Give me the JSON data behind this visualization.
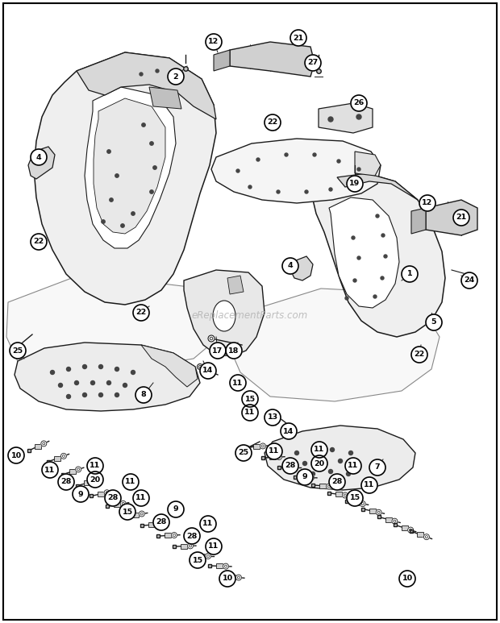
{
  "background_color": "#ffffff",
  "border_color": "#000000",
  "watermark": "eReplacementParts.com",
  "watermark_color": "#b0b0b0",
  "figsize": [
    6.2,
    7.73
  ],
  "dpi": 100,
  "labels": [
    [
      "2",
      218,
      95
    ],
    [
      "12",
      265,
      52
    ],
    [
      "21",
      370,
      47
    ],
    [
      "4",
      48,
      195
    ],
    [
      "22",
      48,
      300
    ],
    [
      "25",
      22,
      435
    ],
    [
      "22",
      175,
      388
    ],
    [
      "8",
      178,
      490
    ],
    [
      "10",
      20,
      565
    ],
    [
      "11",
      62,
      583
    ],
    [
      "28",
      82,
      598
    ],
    [
      "9",
      100,
      613
    ],
    [
      "20",
      118,
      595
    ],
    [
      "11",
      118,
      578
    ],
    [
      "28",
      140,
      618
    ],
    [
      "11",
      162,
      598
    ],
    [
      "15",
      158,
      635
    ],
    [
      "11",
      175,
      618
    ],
    [
      "28",
      200,
      648
    ],
    [
      "9",
      218,
      632
    ],
    [
      "28",
      238,
      665
    ],
    [
      "11",
      258,
      650
    ],
    [
      "15",
      245,
      695
    ],
    [
      "11",
      265,
      678
    ],
    [
      "10",
      282,
      718
    ],
    [
      "27",
      388,
      78
    ],
    [
      "26",
      445,
      128
    ],
    [
      "22",
      338,
      152
    ],
    [
      "19",
      440,
      228
    ],
    [
      "17",
      270,
      435
    ],
    [
      "18",
      290,
      435
    ],
    [
      "14",
      258,
      460
    ],
    [
      "11",
      295,
      475
    ],
    [
      "15",
      310,
      495
    ],
    [
      "11",
      310,
      512
    ],
    [
      "13",
      338,
      518
    ],
    [
      "14",
      358,
      535
    ],
    [
      "25",
      302,
      562
    ],
    [
      "11",
      340,
      560
    ],
    [
      "28",
      360,
      578
    ],
    [
      "9",
      378,
      592
    ],
    [
      "20",
      396,
      575
    ],
    [
      "11",
      396,
      558
    ],
    [
      "28",
      418,
      598
    ],
    [
      "11",
      438,
      578
    ],
    [
      "15",
      440,
      618
    ],
    [
      "11",
      458,
      602
    ],
    [
      "10",
      505,
      718
    ],
    [
      "7",
      468,
      580
    ],
    [
      "4",
      360,
      330
    ],
    [
      "1",
      508,
      340
    ],
    [
      "5",
      538,
      400
    ],
    [
      "22",
      520,
      440
    ],
    [
      "24",
      582,
      348
    ],
    [
      "12",
      530,
      252
    ],
    [
      "21",
      572,
      270
    ]
  ]
}
